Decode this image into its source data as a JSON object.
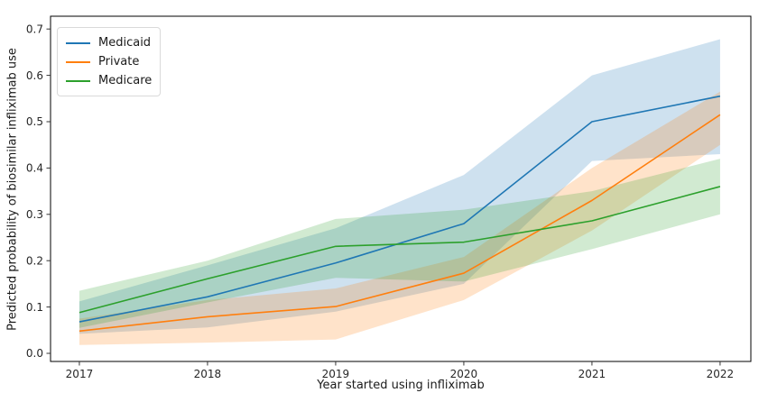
{
  "chart_data": {
    "type": "line",
    "title": "",
    "xlabel": "Year started using infliximab",
    "ylabel": "Predicted probability of biosimilar infliximab use",
    "x": [
      2017,
      2018,
      2019,
      2020,
      2021,
      2022
    ],
    "xtick_labels": [
      "2017",
      "2018",
      "2019",
      "2020",
      "2021",
      "2022"
    ],
    "ytick_labels": [
      "0.0",
      "0.1",
      "0.2",
      "0.3",
      "0.4",
      "0.5",
      "0.6",
      "0.7"
    ],
    "yticks": [
      0.0,
      0.1,
      0.2,
      0.3,
      0.4,
      0.5,
      0.6,
      0.7
    ],
    "xlim": [
      2016.775,
      2022.24
    ],
    "ylim": [
      -0.0175,
      0.7276
    ],
    "grid": false,
    "legend_position": "upper-left",
    "band_opacity": 0.22,
    "series": [
      {
        "name": "Medicaid",
        "color": "#1f77b4",
        "values": [
          0.068,
          0.122,
          0.195,
          0.28,
          0.5,
          0.555
        ],
        "ci_lower": [
          0.042,
          0.056,
          0.09,
          0.15,
          0.415,
          0.43
        ],
        "ci_upper": [
          0.112,
          0.19,
          0.27,
          0.385,
          0.6,
          0.678
        ]
      },
      {
        "name": "Private",
        "color": "#ff7f0e",
        "values": [
          0.048,
          0.079,
          0.101,
          0.173,
          0.33,
          0.515
        ],
        "ci_lower": [
          0.018,
          0.023,
          0.03,
          0.115,
          0.265,
          0.45
        ],
        "ci_upper": [
          0.075,
          0.115,
          0.14,
          0.208,
          0.4,
          0.565
        ]
      },
      {
        "name": "Medicare",
        "color": "#2ca02c",
        "values": [
          0.088,
          0.161,
          0.231,
          0.24,
          0.286,
          0.36
        ],
        "ci_lower": [
          0.055,
          0.11,
          0.163,
          0.155,
          0.225,
          0.3
        ],
        "ci_upper": [
          0.135,
          0.2,
          0.29,
          0.31,
          0.35,
          0.42
        ]
      }
    ]
  }
}
